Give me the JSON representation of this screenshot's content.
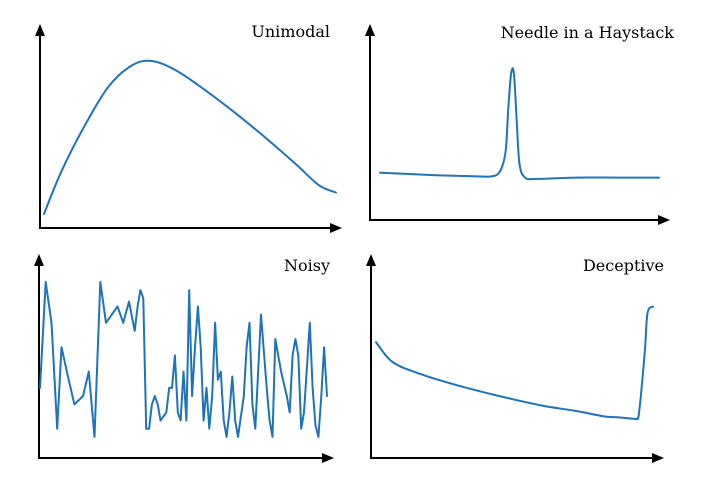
{
  "curve_color": "#1f73b8",
  "axis_color": "#000000",
  "panels": [
    {
      "title": "Unimodal",
      "shape": [
        [
          0,
          0
        ],
        [
          0.06,
          0.28
        ],
        [
          0.14,
          0.58
        ],
        [
          0.22,
          0.83
        ],
        [
          0.3,
          0.97
        ],
        [
          0.37,
          1.0
        ],
        [
          0.46,
          0.93
        ],
        [
          0.58,
          0.77
        ],
        [
          0.72,
          0.56
        ],
        [
          0.86,
          0.33
        ],
        [
          0.94,
          0.19
        ],
        [
          1.0,
          0.14
        ]
      ]
    },
    {
      "title": "Needle in a Haystack",
      "shape": [
        [
          0,
          0.18
        ],
        [
          0.2,
          0.16
        ],
        [
          0.35,
          0.15
        ],
        [
          0.4,
          0.15
        ],
        [
          0.43,
          0.19
        ],
        [
          0.45,
          0.35
        ],
        [
          0.46,
          0.7
        ],
        [
          0.47,
          0.98
        ],
        [
          0.48,
          0.98
        ],
        [
          0.49,
          0.6
        ],
        [
          0.5,
          0.25
        ],
        [
          0.52,
          0.14
        ],
        [
          0.56,
          0.13
        ],
        [
          0.7,
          0.14
        ],
        [
          0.85,
          0.14
        ],
        [
          1.0,
          0.14
        ]
      ]
    },
    {
      "title": "Noisy",
      "shape": [
        [
          0,
          0.35
        ],
        [
          0.02,
          1.0
        ],
        [
          0.04,
          0.75
        ],
        [
          0.06,
          0.1
        ],
        [
          0.075,
          0.6
        ],
        [
          0.1,
          0.4
        ],
        [
          0.12,
          0.25
        ],
        [
          0.15,
          0.3
        ],
        [
          0.17,
          0.45
        ],
        [
          0.19,
          0.05
        ],
        [
          0.21,
          1.0
        ],
        [
          0.23,
          0.75
        ],
        [
          0.25,
          0.8
        ],
        [
          0.27,
          0.85
        ],
        [
          0.29,
          0.75
        ],
        [
          0.31,
          0.88
        ],
        [
          0.33,
          0.7
        ],
        [
          0.34,
          0.85
        ],
        [
          0.35,
          0.95
        ],
        [
          0.36,
          0.9
        ],
        [
          0.37,
          0.1
        ],
        [
          0.38,
          0.1
        ],
        [
          0.39,
          0.25
        ],
        [
          0.4,
          0.3
        ],
        [
          0.41,
          0.25
        ],
        [
          0.42,
          0.15
        ],
        [
          0.44,
          0.2
        ],
        [
          0.45,
          0.35
        ],
        [
          0.46,
          0.35
        ],
        [
          0.47,
          0.55
        ],
        [
          0.48,
          0.2
        ],
        [
          0.49,
          0.15
        ],
        [
          0.5,
          0.45
        ],
        [
          0.51,
          0.15
        ],
        [
          0.52,
          0.95
        ],
        [
          0.53,
          0.3
        ],
        [
          0.54,
          0.6
        ],
        [
          0.55,
          0.85
        ],
        [
          0.56,
          0.6
        ],
        [
          0.57,
          0.15
        ],
        [
          0.58,
          0.35
        ],
        [
          0.59,
          0.1
        ],
        [
          0.6,
          0.3
        ],
        [
          0.61,
          0.75
        ],
        [
          0.62,
          0.4
        ],
        [
          0.63,
          0.45
        ],
        [
          0.64,
          0.15
        ],
        [
          0.65,
          0.05
        ],
        [
          0.66,
          0.2
        ],
        [
          0.67,
          0.42
        ],
        [
          0.68,
          0.15
        ],
        [
          0.69,
          0.05
        ],
        [
          0.71,
          0.3
        ],
        [
          0.72,
          0.6
        ],
        [
          0.73,
          0.75
        ],
        [
          0.74,
          0.25
        ],
        [
          0.75,
          0.1
        ],
        [
          0.77,
          0.8
        ],
        [
          0.79,
          0.35
        ],
        [
          0.8,
          0.15
        ],
        [
          0.81,
          0.05
        ],
        [
          0.82,
          0.65
        ],
        [
          0.84,
          0.45
        ],
        [
          0.86,
          0.3
        ],
        [
          0.87,
          0.2
        ],
        [
          0.88,
          0.55
        ],
        [
          0.89,
          0.65
        ],
        [
          0.9,
          0.55
        ],
        [
          0.91,
          0.1
        ],
        [
          0.92,
          0.2
        ],
        [
          0.94,
          0.75
        ],
        [
          0.95,
          0.35
        ],
        [
          0.96,
          0.12
        ],
        [
          0.97,
          0.05
        ],
        [
          0.98,
          0.3
        ],
        [
          0.99,
          0.6
        ],
        [
          1.0,
          0.3
        ]
      ]
    },
    {
      "title": "Deceptive",
      "shape": [
        [
          0,
          0.68
        ],
        [
          0.06,
          0.53
        ],
        [
          0.16,
          0.44
        ],
        [
          0.3,
          0.35
        ],
        [
          0.45,
          0.27
        ],
        [
          0.6,
          0.2
        ],
        [
          0.72,
          0.16
        ],
        [
          0.82,
          0.12
        ],
        [
          0.88,
          0.11
        ],
        [
          0.93,
          0.1
        ],
        [
          0.94,
          0.1
        ],
        [
          0.95,
          0.15
        ],
        [
          0.97,
          0.6
        ],
        [
          0.98,
          0.9
        ],
        [
          1.0,
          0.95
        ]
      ]
    }
  ]
}
